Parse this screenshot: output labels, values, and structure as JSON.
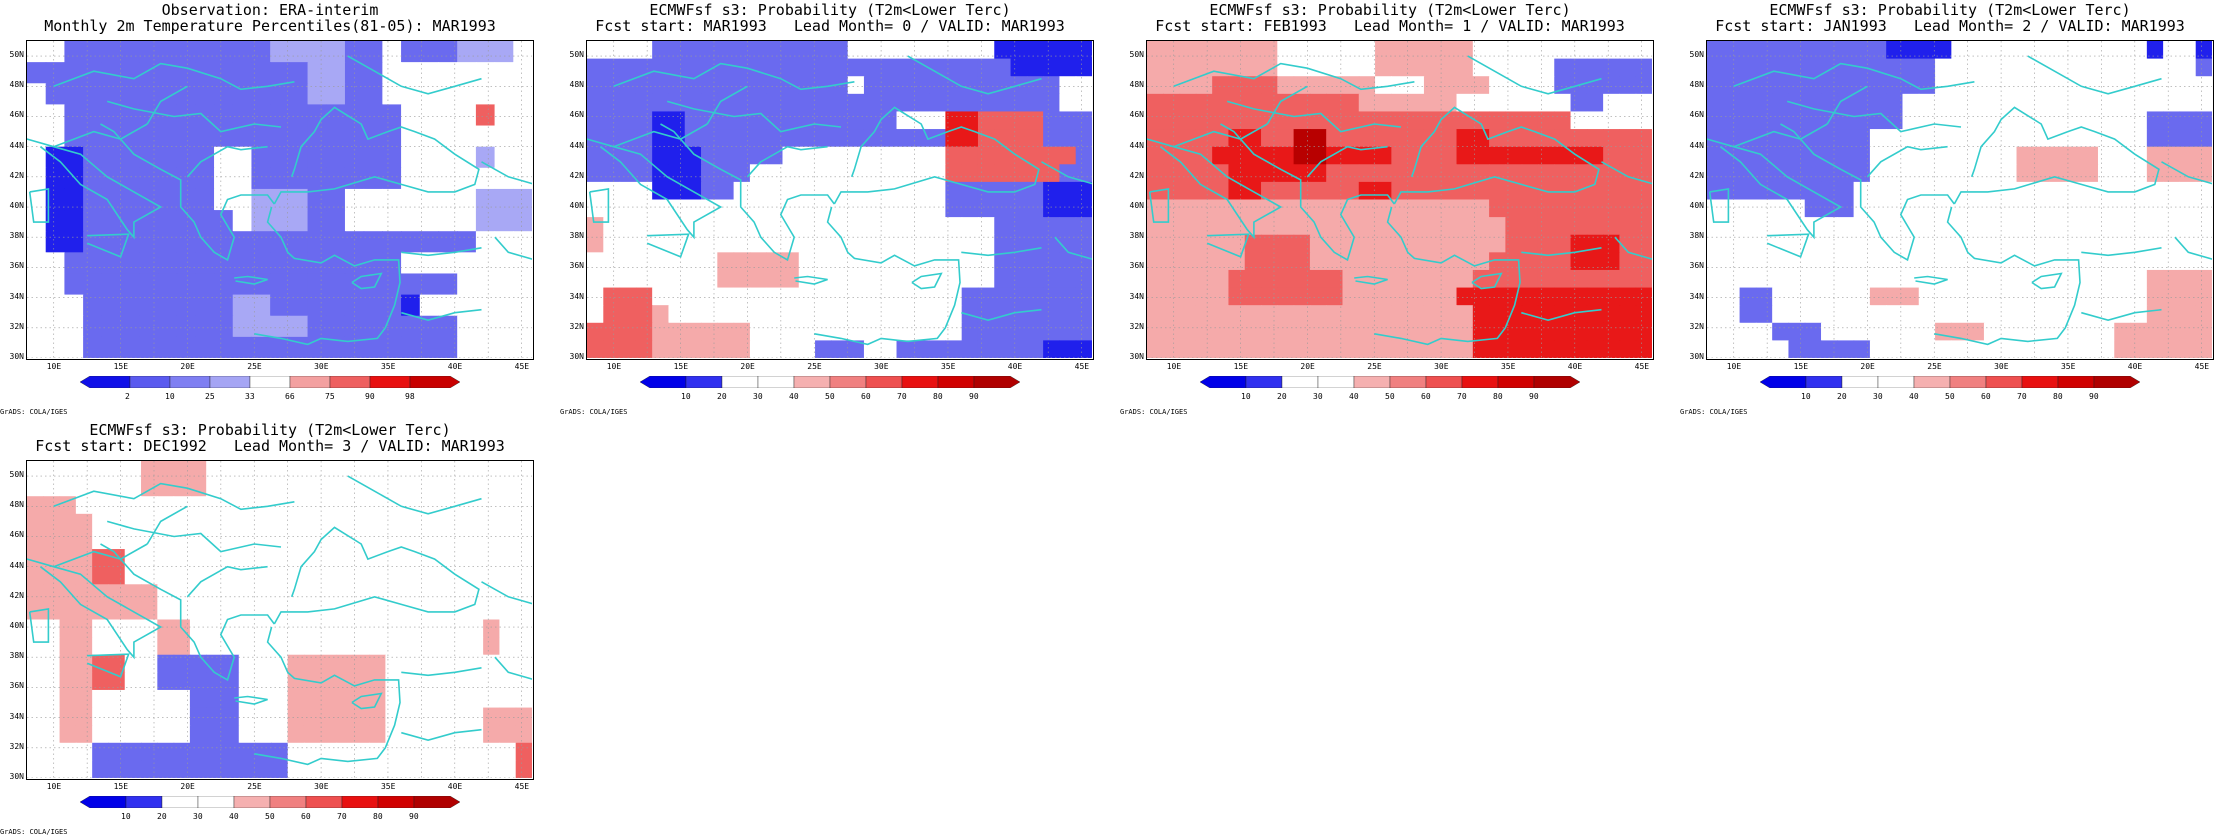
{
  "panels": [
    {
      "id": "obs",
      "title1": "Observation: ERA-interim",
      "title2": "Monthly 2m Temperature Percentiles(81-05): MAR1993",
      "colorbar": {
        "labels": [
          "2",
          "10",
          "25",
          "33",
          "66",
          "75",
          "90",
          "98"
        ],
        "colors": [
          "#1010e8",
          "#5a5aef",
          "#7f7ff2",
          "#a5a5f4",
          "#ffffff",
          "#f3a0a0",
          "#ee6060",
          "#e81010",
          "#c80000"
        ]
      },
      "grid": [
        "wwLLLLLLLLLLLllllLLwLLLlllw",
        "LLLLLLLLLLLLLLLllLLwwwwwwww",
        "wLLLLLLLLLLLLLLllLLwwwwwwww",
        "wwLLLLLLLLLLLLLLLLLLwwwwRww",
        "wwLLLLLLLLLLLLLLLLLLwwwwwww",
        "wMMLLLLLLLwwLLLLLLLLwwwwlww",
        "wMMLLLLLLLwwLLLLLLLLwwwwwww",
        "wMMLLLLLLLwwlllLLwwwwwwwlll",
        "wMMLLLLLLLLwlllLLwwwwwwwlll",
        "wMMLLLLLLLLLLLLLLLLLLLLLwww",
        "wwLLLLLLLLLLLLLLLLLLwwwwwww",
        "wwLLLLLLLLLLLLLLLLLLLLLwwww",
        "wwwLLLLLLLLllLLLLLLLMwwwwww",
        "wwwLLLLLLLLllllLLLLLLLLwwww",
        "wwwLLLLLLLLLLLLLLLLLLLLwwww"
      ]
    },
    {
      "id": "lead0",
      "title1": "ECMWFsf s3: Probability (T2m<Lower Terc)",
      "title2": "Fcst start: MAR1993   Lead Month= 0 / VALID: MAR1993",
      "colorbar": {
        "labels": [
          "10",
          "20",
          "30",
          "40",
          "50",
          "60",
          "70",
          "80",
          "90"
        ],
        "colors": [
          "#0000e8",
          "#3030f0",
          "#ffffff",
          "#ffffff",
          "#f5b0b0",
          "#f08080",
          "#ee5050",
          "#e81010",
          "#d00000",
          "#b00000"
        ]
      },
      "grid": [
        "wwwwLLLLLLLLLLLLwwwwwwwwwMMMMMM",
        "LLLLLLLLLLLLLLLLLLLLLLLLLLMMMMM",
        "LLLLLLLLLLLLLLLLwLLLLLLLLLLLLww",
        "LLLLLLLLLLLLLLLLLLLLLLLLLLLLLww",
        "LLLLMMLLLLLLLLLLLLLwwwSSRRRRLLL",
        "LLLLMMLLLLLLLLLLLLLLLLSSRRRRLLL",
        "LLLLMMMLLLLLwwwwwwwwwwRRRRRRRRL",
        "LLLLMMMLLLwwwwwwwwwwwwRRRRRRRLL",
        "wwwwMMMLLwwwwwwwwwwwwwLLLLLLMMM",
        "wwwwwwwwwwwwwwwwwwwwwwLLLLLLMMM",
        "pwwwwwwwwwwwwwwwwwwwwwwwwLLLLLL",
        "pwwwwwwwwwwwwwwwwwwwwwwwwLLLLLL",
        "wwwwwwwwpppppwwwwwwwwwwwwLLLLLL",
        "wwwwwwwwpppppwwwwwwwwwwwwLLLLLL",
        "wRRRwwwwwwwwwwwwwwwwwwwLLLLLLLL",
        "wRRRpwwwwwwwwwwwwwwwwwwLLLLLLLL",
        "RRRRppppppwwwwwwwwwwwwwLLLLLLLL",
        "RRRRppppppwwwwLLLwwLLLLLLLLLMMM"
      ]
    },
    {
      "id": "lead1",
      "title1": "ECMWFsf s3: Probability (T2m<Lower Terc)",
      "title2": "Fcst start: FEB1993   Lead Month= 1 / VALID: MAR1993",
      "colorbar": {
        "labels": [
          "10",
          "20",
          "30",
          "40",
          "50",
          "60",
          "70",
          "80",
          "90"
        ],
        "colors": [
          "#0000e8",
          "#3030f0",
          "#ffffff",
          "#ffffff",
          "#f5b0b0",
          "#f08080",
          "#ee5050",
          "#e81010",
          "#d00000",
          "#b00000"
        ]
      },
      "grid": [
        "ppppppppwwwwwwppppppwwwwwwwwwww",
        "ppppppppwwwwwwppppppwwwwwLLLLLL",
        "ppppRRRRppppppwwwppppwwwwLLLLLL",
        "RRRRRRRRRRRRRppppppwwwwwwwLLwww",
        "RRRRRRRRRRRRRRRRRRRRRRRRRRwwwww",
        "RRRRRSSRRDDRRRRRRRRSSRRRRRRRRRR",
        "RRRRSSSSSDDSSSSRRRRSSSSSSSSSRRR",
        "RRRRRSSSSSSRRRRRRRRRRRRRRRRRRRR",
        "RRRRRSSRRRRRRSSRRRRRRRRRRRRRRRR",
        "pppppppppppppppppppppRRRRRRRRRR",
        "ppppppppppppppppppppppRRRRRRRRR",
        "ppppppRRRRppppppppppppRRRRSSSRR",
        "ppppppRRRRpppppppppppRRRRRSSSRR",
        "pppppRRRRRRRppppppppRRRRRRRRRRR",
        "pppppRRRRRRRpppppppSSSSSSSSSSSS",
        "ppppppppppppppppppppSSSSSSSSSSS",
        "ppppppppppppppppppppSSSSSSSSSSS",
        "ppppppppppppppppppppSSSSSSSSSSS"
      ]
    },
    {
      "id": "lead2",
      "title1": "ECMWFsf s3: Probability (T2m<Lower Terc)",
      "title2": "Fcst start: JAN1993   Lead Month= 2 / VALID: MAR1993",
      "colorbar": {
        "labels": [
          "10",
          "20",
          "30",
          "40",
          "50",
          "60",
          "70",
          "80",
          "90"
        ],
        "colors": [
          "#0000e8",
          "#3030f0",
          "#ffffff",
          "#ffffff",
          "#f5b0b0",
          "#f08080",
          "#ee5050",
          "#e81010",
          "#d00000",
          "#b00000"
        ]
      },
      "grid": [
        "LLLLLLLLLLLMMMMwwwwwwwwwwwwMwwM",
        "LLLLLLLLLLLLLLwwwwwwwwwwwwwwwwL",
        "LLLLLLLLLLLLLLwwwwwwwwwwwwwwwww",
        "LLLLLLLLLLLLwwwwwwwwwwwwwwwwwww",
        "LLLLLLLLLLLLwwwwwwwwwwwwwwwLLLL",
        "LLLLLLLLLLwwwwwwwwwwwwwwwwwLLLL",
        "LLLLLLLLLLwwwwwwwwwpppppwwwppppw",
        "LLLLLLLLLLwwwwwwwwwpppppwwwpppp",
        "LLLLLLLLLwwwwwwwwwwwwwwwwwwwwww",
        "wwwwwwLLLwwwwwwwwwwwwwwwwwwwwww",
        "wwwwwwwwwwwwwwwwwwwwwwwwwwwwwww",
        "wwwwwwwwwwwwwwwwwwwwwwwwwwwwwww",
        "wwwwwwwwwwwwwwwwwwwwwwwwwwwwwww",
        "wwwwwwwwwwwwwwwwwwwwwwwwwwwpppp",
        "wwLLwwwwwwpppwwwwwwwwwwwwwwpppp",
        "wwLLwwwwwwwwwwwwwwwwwwwwwwwpppp",
        "wwwwLLLwwwwwwwpppwwwwwwwwpppppp",
        "wwwwwLLLLLwwwwwwwwwwwwwwwpppppp"
      ]
    },
    {
      "id": "lead3",
      "title1": "ECMWFsf s3: Probability (T2m<Lower Terc)",
      "title2": "Fcst start: DEC1992   Lead Month= 3 / VALID: MAR1993",
      "colorbar": {
        "labels": [
          "10",
          "20",
          "30",
          "40",
          "50",
          "60",
          "70",
          "80",
          "90"
        ],
        "colors": [
          "#0000e8",
          "#3030f0",
          "#ffffff",
          "#ffffff",
          "#f5b0b0",
          "#f08080",
          "#ee5050",
          "#e81010",
          "#d00000",
          "#b00000"
        ]
      },
      "grid": [
        "wwwwwwwppppwwwwwwwwwwwwwwwwwwww",
        "wwwwwwwppppwwwwwwwwwwwwwwwwwwww",
        "pppwwwwwwwwwwwwwwwwwwwwwwwwwwww",
        "ppppwwwwwwwwwwwwwwwwwwwwwwwwwww",
        "ppppwwwwwwwwwwwwwwwwwwwwwwwwwww",
        "ppppRRwwwwwwwwwwwwwwwwwwwwwwwww",
        "ppppRRwwwwwwwwwwwwwwwwwwwwwwwww",
        "ppppppppwwwwwwwwwwwwwwwwwwwwwww",
        "ppppppppwwwwwwwwwwwwwwwwwwwwwww",
        "wwppwwwwppwwwwwwwwwwwwwwwwwwpww",
        "wwppwwwwppwwwwwwwwwwwwwwwwwwpww",
        "wwppRRwwLLLLLwwwppppppwwwwwwwww",
        "wwppRRwwLLLLLwwwppppppwwwwwwwww",
        "wwppwwwwwwLLLwwwppppppwwwwwwwww",
        "wwppwwwwwwLLLwwwppppppwwwwwwpppp",
        "wwppwwwwwwLLLwwwppppppwwwwwwppp",
        "wwwwLLLLLLLLLLLLwwwwwwwwwwwwwwR",
        "wwwwLLLLLLLLLLLLwwwwwwwwwwwwwwR"
      ]
    }
  ],
  "axes": {
    "lat_labels": [
      "50N",
      "48N",
      "46N",
      "44N",
      "42N",
      "40N",
      "38N",
      "36N",
      "34N",
      "32N",
      "30N"
    ],
    "lon_labels": [
      "10E",
      "15E",
      "20E",
      "25E",
      "30E",
      "35E",
      "40E",
      "45E"
    ]
  },
  "credit": "GrADS: COLA/IGES",
  "palette": {
    "w": "#ffffff",
    "l": "#a8a8f5",
    "L": "#6a6aef",
    "M": "#2020ec",
    "p": "#f5aaaa",
    "R": "#ef6060",
    "S": "#e81818",
    "D": "#b80000",
    "coast": "#33cccc"
  }
}
